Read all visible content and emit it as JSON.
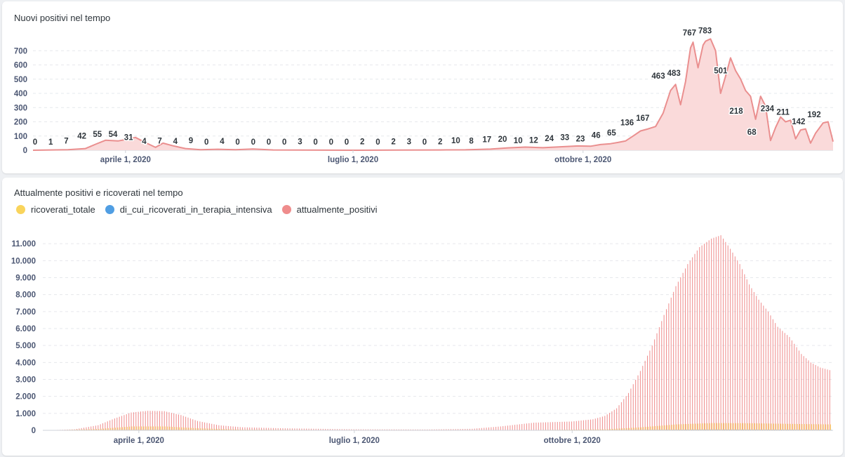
{
  "charts": {
    "top": {
      "title": "Nuovi positivi nel tempo"
    },
    "bottom": {
      "title": "Attualmente positivi e ricoverati nel tempo"
    }
  },
  "colors": {
    "nuovi": "#ea8f8f",
    "nuovi_fill": "#fadada",
    "ricoverati_totale": "#f9d45c",
    "terapia_intensiva": "#509ee3",
    "attualmente_positivi": "#ef8c8c"
  },
  "chart_data": [
    {
      "type": "area",
      "title": "Nuovi positivi nel tempo",
      "xlabel": "",
      "ylabel": "",
      "x_ticks": [
        "aprile 1, 2020",
        "luglio 1, 2020",
        "ottobre 1, 2020"
      ],
      "y_ticks": [
        0,
        100,
        200,
        300,
        400,
        500,
        600,
        700
      ],
      "ylim": [
        0,
        800
      ],
      "grid": true,
      "series": [
        {
          "name": "",
          "points": [
            [
              "2020-02-24",
              0
            ],
            [
              "2020-03-02",
              2
            ],
            [
              "2020-03-09",
              4
            ],
            [
              "2020-03-16",
              12
            ],
            [
              "2020-03-20",
              42
            ],
            [
              "2020-03-24",
              70
            ],
            [
              "2020-03-29",
              65
            ],
            [
              "2020-04-02",
              78
            ],
            [
              "2020-04-05",
              90
            ],
            [
              "2020-04-09",
              54
            ],
            [
              "2020-04-13",
              20
            ],
            [
              "2020-04-16",
              50
            ],
            [
              "2020-04-20",
              31
            ],
            [
              "2020-04-25",
              12
            ],
            [
              "2020-05-01",
              4
            ],
            [
              "2020-05-08",
              7
            ],
            [
              "2020-05-15",
              4
            ],
            [
              "2020-05-22",
              9
            ],
            [
              "2020-05-30",
              2
            ],
            [
              "2020-06-10",
              1
            ],
            [
              "2020-07-01",
              0
            ],
            [
              "2020-07-20",
              1
            ],
            [
              "2020-08-05",
              2
            ],
            [
              "2020-08-15",
              3
            ],
            [
              "2020-08-25",
              8
            ],
            [
              "2020-09-01",
              17
            ],
            [
              "2020-09-08",
              22
            ],
            [
              "2020-09-15",
              18
            ],
            [
              "2020-09-22",
              24
            ],
            [
              "2020-09-29",
              30
            ],
            [
              "2020-10-04",
              28
            ],
            [
              "2020-10-08",
              40
            ],
            [
              "2020-10-12",
              46
            ],
            [
              "2020-10-15",
              55
            ],
            [
              "2020-10-18",
              65
            ],
            [
              "2020-10-21",
              100
            ],
            [
              "2020-10-24",
              136
            ],
            [
              "2020-10-27",
              150
            ],
            [
              "2020-10-30",
              167
            ],
            [
              "2020-11-02",
              260
            ],
            [
              "2020-11-05",
              420
            ],
            [
              "2020-11-07",
              463
            ],
            [
              "2020-11-09",
              320
            ],
            [
              "2020-11-11",
              483
            ],
            [
              "2020-11-13",
              720
            ],
            [
              "2020-11-14",
              760
            ],
            [
              "2020-11-16",
              580
            ],
            [
              "2020-11-18",
              740
            ],
            [
              "2020-11-19",
              767
            ],
            [
              "2020-11-21",
              783
            ],
            [
              "2020-11-23",
              700
            ],
            [
              "2020-11-25",
              400
            ],
            [
              "2020-11-27",
              520
            ],
            [
              "2020-11-29",
              650
            ],
            [
              "2020-12-01",
              560
            ],
            [
              "2020-12-03",
              501
            ],
            [
              "2020-12-05",
              420
            ],
            [
              "2020-12-07",
              380
            ],
            [
              "2020-12-09",
              218
            ],
            [
              "2020-12-11",
              380
            ],
            [
              "2020-12-13",
              310
            ],
            [
              "2020-12-15",
              68
            ],
            [
              "2020-12-17",
              160
            ],
            [
              "2020-12-19",
              234
            ],
            [
              "2020-12-21",
              200
            ],
            [
              "2020-12-23",
              211
            ],
            [
              "2020-12-25",
              80
            ],
            [
              "2020-12-27",
              142
            ],
            [
              "2020-12-29",
              150
            ],
            [
              "2020-12-31",
              50
            ],
            [
              "2021-01-02",
              120
            ],
            [
              "2021-01-05",
              192
            ],
            [
              "2021-01-07",
              200
            ],
            [
              "2021-01-09",
              60
            ]
          ]
        }
      ],
      "data_labels": [
        {
          "x": "2020-02-22",
          "y": 0,
          "label": "0"
        },
        {
          "x": "2020-03-02",
          "y": 1,
          "label": "1"
        },
        {
          "x": "2020-03-11",
          "y": 7,
          "label": "7"
        },
        {
          "x": "2020-03-20",
          "y": 42,
          "label": "42"
        },
        {
          "x": "2020-03-30",
          "y": 55,
          "label": "55"
        },
        {
          "x": "2020-04-08",
          "y": 54,
          "label": "54"
        },
        {
          "x": "2020-04-18",
          "y": 31,
          "label": "31"
        },
        {
          "x": "2020-04-27",
          "y": 4,
          "label": "4"
        },
        {
          "x": "2020-05-10",
          "y": 7,
          "label": "7"
        },
        {
          "x": "2020-05-20",
          "y": 4,
          "label": "4"
        },
        {
          "x": "2020-05-30",
          "y": 9,
          "label": "9"
        },
        {
          "x": "2020-06-08",
          "y": 0,
          "label": "0"
        },
        {
          "x": "2020-06-18",
          "y": 4,
          "label": "4"
        },
        {
          "x": "2020-06-28",
          "y": 0,
          "label": "0"
        },
        {
          "x": "2020-07-08",
          "y": 0,
          "label": "0"
        },
        {
          "x": "2020-07-18",
          "y": 0,
          "label": "0"
        },
        {
          "x": "2020-07-28",
          "y": 0,
          "label": "0"
        },
        {
          "x": "2020-08-07",
          "y": 3,
          "label": "3"
        },
        {
          "x": "2020-08-17",
          "y": 0,
          "label": "0"
        },
        {
          "x": "2020-08-27",
          "y": 0,
          "label": "0"
        },
        {
          "x": "2020-09-06",
          "y": 0,
          "label": "0"
        },
        {
          "x": "2020-09-16",
          "y": 2,
          "label": "2"
        },
        {
          "x": "2020-09-26",
          "y": 0,
          "label": "0"
        },
        {
          "x": "2020-10-06",
          "y": 2,
          "label": "2"
        },
        {
          "x": "2020-10-14",
          "y": 3,
          "label": "3"
        },
        {
          "x": "2020-10-24",
          "y": 0,
          "label": "0"
        },
        {
          "x": "2020-11-03",
          "y": 2,
          "label": "2"
        },
        {
          "x": "2020-11-13",
          "y": 10,
          "label": "10"
        },
        {
          "x": "2020-11-23",
          "y": 8,
          "label": "8"
        },
        {
          "x": "2020-12-03",
          "y": 17,
          "label": "17"
        },
        {
          "x": "2020-12-13",
          "y": 20,
          "label": "20"
        },
        {
          "x": "2020-12-23",
          "y": 10,
          "label": "10"
        },
        {
          "x": "2021-01-02",
          "y": 12,
          "label": "12"
        },
        {
          "x": "2021-01-12",
          "y": 24,
          "label": "24"
        },
        {
          "x": "2021-01-22",
          "y": 33,
          "label": "33"
        },
        {
          "x": "2021-02-01",
          "y": 23,
          "label": "23"
        },
        {
          "x": "2021-02-11",
          "y": 46,
          "label": "46"
        },
        {
          "x": "2021-02-21",
          "y": 65,
          "label": "65"
        },
        {
          "x": "2021-03-03",
          "y": 136,
          "label": "136"
        },
        {
          "x": "2021-03-13",
          "y": 167,
          "label": "167"
        },
        {
          "x": "2021-03-23",
          "y": 463,
          "label": "463"
        },
        {
          "x": "2021-04-02",
          "y": 483,
          "label": "483"
        },
        {
          "x": "2021-04-12",
          "y": 767,
          "label": "767"
        },
        {
          "x": "2021-04-22",
          "y": 783,
          "label": "783"
        },
        {
          "x": "2021-05-02",
          "y": 501,
          "label": "501"
        },
        {
          "x": "2021-05-12",
          "y": 218,
          "label": "218"
        },
        {
          "x": "2021-05-22",
          "y": 68,
          "label": "68"
        },
        {
          "x": "2021-06-01",
          "y": 234,
          "label": "234"
        },
        {
          "x": "2021-06-11",
          "y": 211,
          "label": "211"
        },
        {
          "x": "2021-06-21",
          "y": 142,
          "label": "142"
        },
        {
          "x": "2021-07-01",
          "y": 192,
          "label": "192"
        }
      ]
    },
    {
      "type": "bar",
      "title": "Attualmente positivi e ricoverati nel tempo",
      "xlabel": "",
      "ylabel": "",
      "x_ticks": [
        "aprile 1, 2020",
        "luglio 1, 2020",
        "ottobre 1, 2020"
      ],
      "y_ticks": [
        "0",
        "1.000",
        "2.000",
        "3.000",
        "4.000",
        "5.000",
        "6.000",
        "7.000",
        "8.000",
        "9.000",
        "10.000",
        "11.000"
      ],
      "ylim": [
        0,
        12000
      ],
      "grid": true,
      "legend_position": "top-left",
      "legend": [
        "ricoverati_totale",
        "di_cui_ricoverati_in_terapia_intensiva",
        "attualmente_positivi"
      ],
      "series": [
        {
          "name": "attualmente_positivi",
          "points": [
            [
              "2020-02-24",
              10
            ],
            [
              "2020-03-05",
              60
            ],
            [
              "2020-03-15",
              300
            ],
            [
              "2020-03-22",
              700
            ],
            [
              "2020-03-29",
              1050
            ],
            [
              "2020-04-05",
              1150
            ],
            [
              "2020-04-12",
              1130
            ],
            [
              "2020-04-19",
              900
            ],
            [
              "2020-04-26",
              550
            ],
            [
              "2020-05-05",
              300
            ],
            [
              "2020-05-15",
              180
            ],
            [
              "2020-06-01",
              120
            ],
            [
              "2020-07-01",
              60
            ],
            [
              "2020-08-01",
              50
            ],
            [
              "2020-08-20",
              90
            ],
            [
              "2020-09-01",
              230
            ],
            [
              "2020-09-15",
              450
            ],
            [
              "2020-10-01",
              520
            ],
            [
              "2020-10-10",
              650
            ],
            [
              "2020-10-15",
              850
            ],
            [
              "2020-10-20",
              1300
            ],
            [
              "2020-10-25",
              2200
            ],
            [
              "2020-10-30",
              3500
            ],
            [
              "2020-11-04",
              5000
            ],
            [
              "2020-11-09",
              6800
            ],
            [
              "2020-11-14",
              8500
            ],
            [
              "2020-11-19",
              9800
            ],
            [
              "2020-11-24",
              10800
            ],
            [
              "2020-11-29",
              11300
            ],
            [
              "2020-12-03",
              11500
            ],
            [
              "2020-12-07",
              10700
            ],
            [
              "2020-12-11",
              9800
            ],
            [
              "2020-12-15",
              8600
            ],
            [
              "2020-12-19",
              7700
            ],
            [
              "2020-12-23",
              7000
            ],
            [
              "2020-12-27",
              6100
            ],
            [
              "2021-01-01",
              5500
            ],
            [
              "2021-01-06",
              4500
            ],
            [
              "2021-01-10",
              4000
            ],
            [
              "2021-01-14",
              3700
            ],
            [
              "2021-01-18",
              3550
            ]
          ]
        },
        {
          "name": "ricoverati_totale",
          "points": [
            [
              "2020-02-24",
              0
            ],
            [
              "2020-03-15",
              80
            ],
            [
              "2020-03-29",
              230
            ],
            [
              "2020-04-12",
              230
            ],
            [
              "2020-04-26",
              120
            ],
            [
              "2020-05-15",
              40
            ],
            [
              "2020-07-01",
              10
            ],
            [
              "2020-09-15",
              20
            ],
            [
              "2020-10-15",
              60
            ],
            [
              "2020-10-30",
              180
            ],
            [
              "2020-11-14",
              350
            ],
            [
              "2020-11-29",
              430
            ],
            [
              "2020-12-15",
              420
            ],
            [
              "2021-01-01",
              380
            ],
            [
              "2021-01-18",
              350
            ]
          ]
        },
        {
          "name": "di_cui_ricoverati_in_terapia_intensiva",
          "points": [
            [
              "2020-02-24",
              0
            ],
            [
              "2020-03-29",
              30
            ],
            [
              "2020-04-12",
              30
            ],
            [
              "2020-05-15",
              5
            ],
            [
              "2020-09-15",
              2
            ],
            [
              "2020-11-14",
              40
            ],
            [
              "2020-11-29",
              50
            ],
            [
              "2020-12-15",
              45
            ],
            [
              "2021-01-18",
              35
            ]
          ]
        }
      ]
    }
  ]
}
